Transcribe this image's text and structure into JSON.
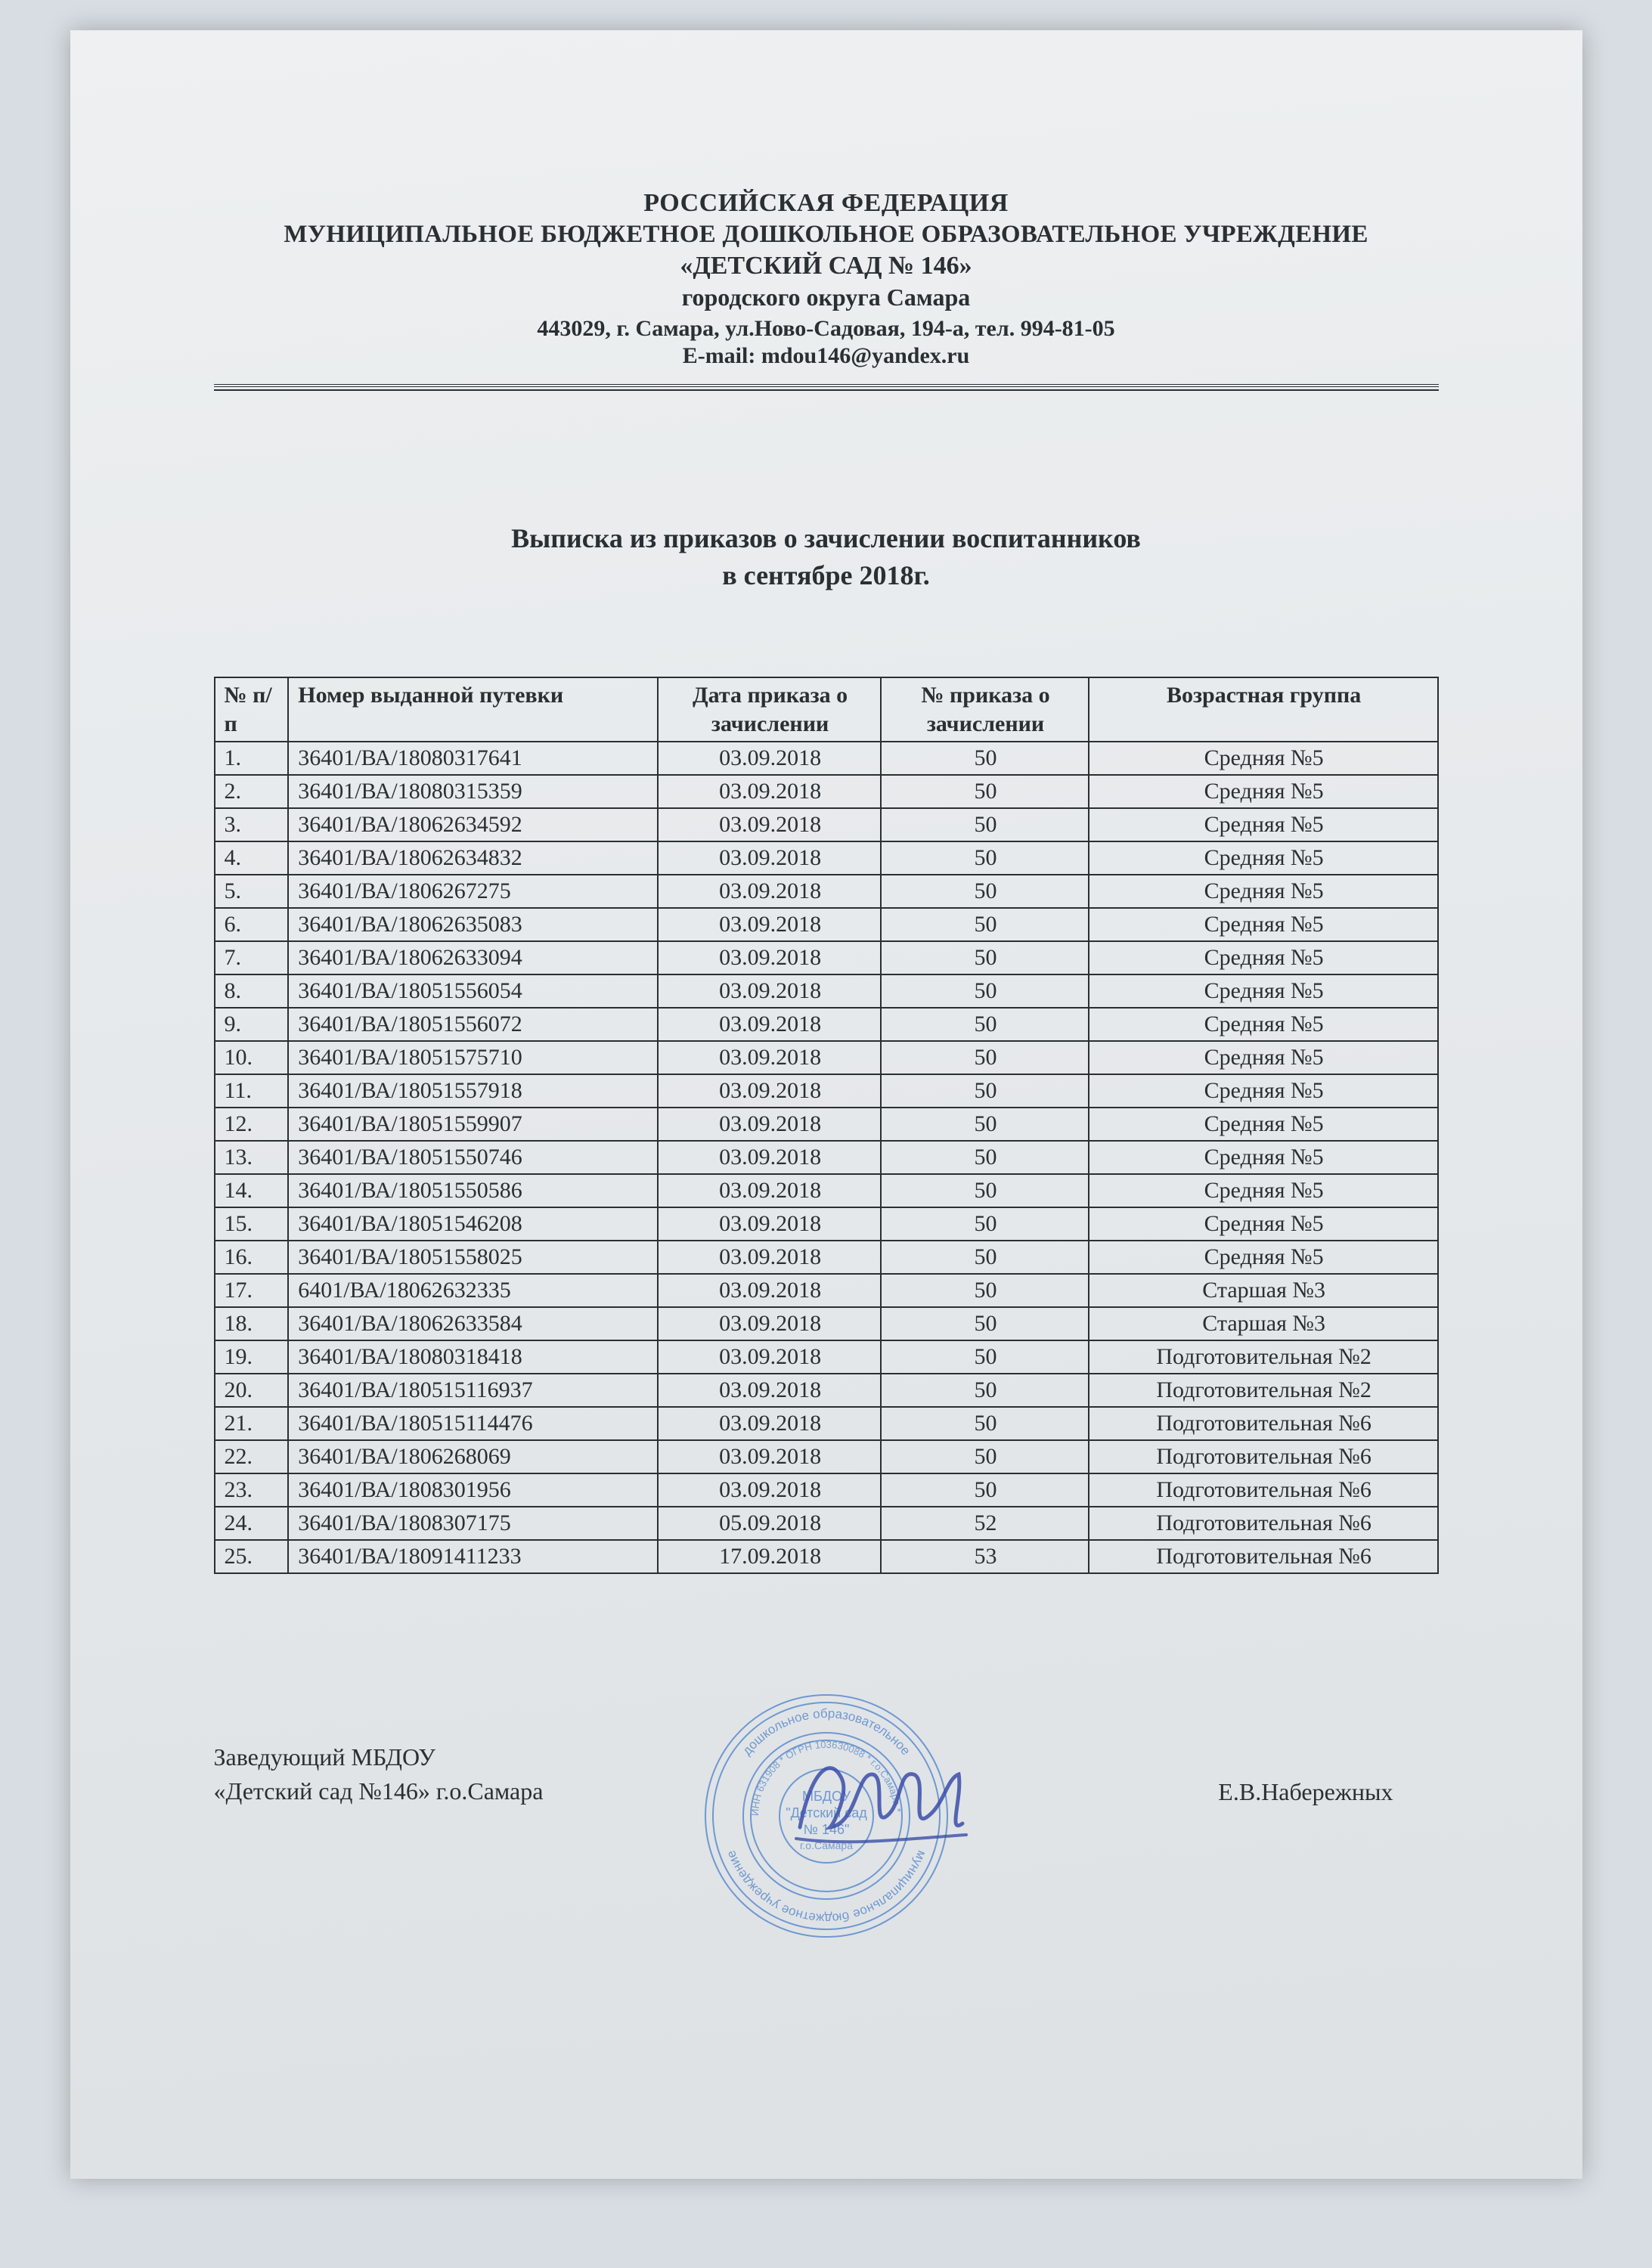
{
  "header": {
    "line1": "РОССИЙСКАЯ ФЕДЕРАЦИЯ",
    "line2": "МУНИЦИПАЛЬНОЕ БЮДЖЕТНОЕ ДОШКОЛЬНОЕ ОБРАЗОВАТЕЛЬНОЕ УЧРЕЖДЕНИЕ",
    "line3": "«ДЕТСКИЙ САД № 146»",
    "line4": "городского округа Самара",
    "line5": "443029, г. Самара, ул.Ново-Садовая, 194-а, тел. 994-81-05",
    "line6": "E-mail: mdou146@yandex.ru"
  },
  "title": {
    "line1": "Выписка из приказов о зачислении воспитанников",
    "line2": "в сентябре 2018г."
  },
  "table": {
    "columns": {
      "num": "№ п/п",
      "voucher": "Номер выданной путевки",
      "date": "Дата приказа о зачислении",
      "order": "№ приказа о зачислении",
      "group": "Возрастная группа"
    },
    "rows": [
      {
        "n": "1.",
        "voucher": "36401/ВА/18080317641",
        "date": "03.09.2018",
        "order": "50",
        "group": "Средняя №5"
      },
      {
        "n": "2.",
        "voucher": "36401/ВА/18080315359",
        "date": "03.09.2018",
        "order": "50",
        "group": "Средняя №5"
      },
      {
        "n": "3.",
        "voucher": "36401/ВА/18062634592",
        "date": "03.09.2018",
        "order": "50",
        "group": "Средняя №5"
      },
      {
        "n": "4.",
        "voucher": "36401/ВА/18062634832",
        "date": "03.09.2018",
        "order": "50",
        "group": "Средняя №5"
      },
      {
        "n": "5.",
        "voucher": "36401/ВА/1806267275",
        "date": "03.09.2018",
        "order": "50",
        "group": "Средняя №5"
      },
      {
        "n": "6.",
        "voucher": "36401/ВА/18062635083",
        "date": "03.09.2018",
        "order": "50",
        "group": "Средняя №5"
      },
      {
        "n": "7.",
        "voucher": "36401/ВА/18062633094",
        "date": "03.09.2018",
        "order": "50",
        "group": "Средняя №5"
      },
      {
        "n": "8.",
        "voucher": "36401/ВА/18051556054",
        "date": "03.09.2018",
        "order": "50",
        "group": "Средняя №5"
      },
      {
        "n": "9.",
        "voucher": "36401/ВА/18051556072",
        "date": "03.09.2018",
        "order": "50",
        "group": "Средняя №5"
      },
      {
        "n": "10.",
        "voucher": "36401/ВА/18051575710",
        "date": "03.09.2018",
        "order": "50",
        "group": "Средняя №5"
      },
      {
        "n": "11.",
        "voucher": "36401/ВА/18051557918",
        "date": "03.09.2018",
        "order": "50",
        "group": "Средняя №5"
      },
      {
        "n": "12.",
        "voucher": "36401/ВА/18051559907",
        "date": "03.09.2018",
        "order": "50",
        "group": "Средняя №5"
      },
      {
        "n": "13.",
        "voucher": "36401/ВА/18051550746",
        "date": "03.09.2018",
        "order": "50",
        "group": "Средняя №5"
      },
      {
        "n": "14.",
        "voucher": "36401/ВА/18051550586",
        "date": "03.09.2018",
        "order": "50",
        "group": "Средняя №5"
      },
      {
        "n": "15.",
        "voucher": "36401/ВА/18051546208",
        "date": "03.09.2018",
        "order": "50",
        "group": "Средняя №5"
      },
      {
        "n": "16.",
        "voucher": "36401/ВА/18051558025",
        "date": "03.09.2018",
        "order": "50",
        "group": "Средняя №5"
      },
      {
        "n": "17.",
        "voucher": "6401/ВА/18062632335",
        "date": "03.09.2018",
        "order": "50",
        "group": "Старшая №3"
      },
      {
        "n": "18.",
        "voucher": "36401/ВА/18062633584",
        "date": "03.09.2018",
        "order": "50",
        "group": "Старшая №3"
      },
      {
        "n": "19.",
        "voucher": "36401/ВА/18080318418",
        "date": "03.09.2018",
        "order": "50",
        "group": "Подготовительная №2"
      },
      {
        "n": "20.",
        "voucher": "36401/ВА/180515116937",
        "date": "03.09.2018",
        "order": "50",
        "group": "Подготовительная №2"
      },
      {
        "n": "21.",
        "voucher": "36401/ВА/180515114476",
        "date": "03.09.2018",
        "order": "50",
        "group": "Подготовительная №6"
      },
      {
        "n": "22.",
        "voucher": "36401/ВА/1806268069",
        "date": "03.09.2018",
        "order": "50",
        "group": "Подготовительная №6"
      },
      {
        "n": "23.",
        "voucher": "36401/ВА/1808301956",
        "date": "03.09.2018",
        "order": "50",
        "group": "Подготовительная №6"
      },
      {
        "n": "24.",
        "voucher": "36401/ВА/1808307175",
        "date": "05.09.2018",
        "order": "52",
        "group": "Подготовительная №6"
      },
      {
        "n": "25.",
        "voucher": "36401/ВА/18091411233",
        "date": "17.09.2018",
        "order": "53",
        "group": "Подготовительная №6"
      }
    ]
  },
  "signatory": {
    "position_line1": "Заведующий МБДОУ",
    "position_line2": "«Детский сад №146» г.о.Самара",
    "name": "Е.В.Набережных"
  },
  "style": {
    "page_bg": "#e7eaec",
    "text_color": "#2a2f33",
    "border_color": "#2a2f33",
    "stamp_color": "#4a7fc9",
    "signature_color": "#3b4ea8",
    "font_family": "Times New Roman",
    "header_bold_size_pt": 34,
    "body_size_pt": 30,
    "title_size_pt": 36
  }
}
